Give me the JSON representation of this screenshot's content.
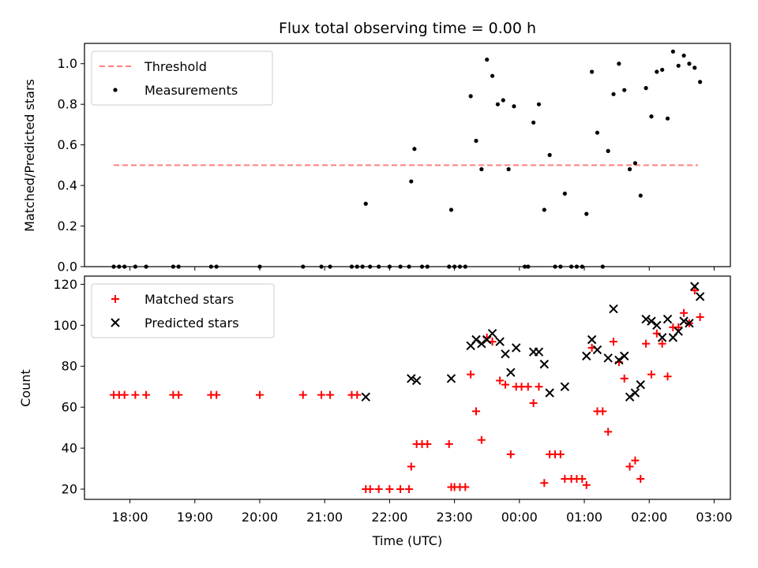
{
  "chart_data": [
    {
      "type": "scatter",
      "title": "Flux total observing time = 0.00 h",
      "xlabel": "",
      "ylabel": "Matched/Predicted stars",
      "xlim": [
        "17:18",
        "03:15"
      ],
      "ylim": [
        0,
        1.1
      ],
      "yticks": [
        "0.0",
        "0.2",
        "0.4",
        "0.6",
        "0.8",
        "1.0"
      ],
      "legend_position": "top-left",
      "threshold": {
        "name": "Threshold",
        "value": 0.5,
        "x_start": "17:45",
        "x_end": "02:45",
        "color": "#ff7f7f"
      },
      "series": [
        {
          "name": "Measurements",
          "color": "#000000",
          "points": [
            [
              "17:45",
              0
            ],
            [
              "17:50",
              0
            ],
            [
              "17:55",
              0
            ],
            [
              "18:05",
              0
            ],
            [
              "18:15",
              0
            ],
            [
              "18:40",
              0
            ],
            [
              "18:45",
              0
            ],
            [
              "19:15",
              0
            ],
            [
              "19:20",
              0
            ],
            [
              "20:00",
              0
            ],
            [
              "20:40",
              0
            ],
            [
              "20:57",
              0
            ],
            [
              "21:05",
              0
            ],
            [
              "21:25",
              0
            ],
            [
              "21:30",
              0
            ],
            [
              "21:35",
              0
            ],
            [
              "21:38",
              0.31
            ],
            [
              "21:42",
              0
            ],
            [
              "21:50",
              0
            ],
            [
              "22:00",
              0
            ],
            [
              "22:10",
              0
            ],
            [
              "22:18",
              0
            ],
            [
              "22:20",
              0.42
            ],
            [
              "22:23",
              0.58
            ],
            [
              "22:30",
              0
            ],
            [
              "22:35",
              0
            ],
            [
              "22:55",
              0
            ],
            [
              "22:57",
              0.28
            ],
            [
              "23:00",
              0
            ],
            [
              "23:05",
              0
            ],
            [
              "23:10",
              0
            ],
            [
              "23:15",
              0.84
            ],
            [
              "23:20",
              0.62
            ],
            [
              "23:25",
              0.48
            ],
            [
              "23:30",
              1.02
            ],
            [
              "23:35",
              0.94
            ],
            [
              "23:40",
              0.8
            ],
            [
              "23:45",
              0.82
            ],
            [
              "23:50",
              0.48
            ],
            [
              "23:55",
              0.79
            ],
            [
              "00:05",
              0
            ],
            [
              "00:08",
              0
            ],
            [
              "00:13",
              0.71
            ],
            [
              "00:18",
              0.8
            ],
            [
              "00:23",
              0.28
            ],
            [
              "00:28",
              0.55
            ],
            [
              "00:33",
              0
            ],
            [
              "00:38",
              0
            ],
            [
              "00:42",
              0.36
            ],
            [
              "00:48",
              0
            ],
            [
              "00:53",
              0
            ],
            [
              "00:58",
              0
            ],
            [
              "01:02",
              0.26
            ],
            [
              "01:07",
              0.96
            ],
            [
              "01:12",
              0.66
            ],
            [
              "01:17",
              0
            ],
            [
              "01:22",
              0.57
            ],
            [
              "01:27",
              0.85
            ],
            [
              "01:32",
              1.0
            ],
            [
              "01:37",
              0.87
            ],
            [
              "01:42",
              0.48
            ],
            [
              "01:47",
              0.51
            ],
            [
              "01:52",
              0.35
            ],
            [
              "01:57",
              0.88
            ],
            [
              "02:02",
              0.74
            ],
            [
              "02:07",
              0.96
            ],
            [
              "02:12",
              0.97
            ],
            [
              "02:17",
              0.73
            ],
            [
              "02:22",
              1.06
            ],
            [
              "02:27",
              0.99
            ],
            [
              "02:32",
              1.04
            ],
            [
              "02:37",
              1.0
            ],
            [
              "02:42",
              0.98
            ],
            [
              "02:47",
              0.91
            ]
          ]
        }
      ]
    },
    {
      "type": "scatter",
      "title": "",
      "xlabel": "Time (UTC)",
      "ylabel": "Count",
      "xlim": [
        "17:18",
        "03:15"
      ],
      "ylim": [
        15,
        124
      ],
      "yticks": [
        "20",
        "40",
        "60",
        "80",
        "100",
        "120"
      ],
      "xticks": [
        "18:00",
        "19:00",
        "20:00",
        "21:00",
        "22:00",
        "23:00",
        "00:00",
        "01:00",
        "02:00",
        "03:00"
      ],
      "legend_position": "top-left",
      "series": [
        {
          "name": "Matched stars",
          "color": "#ff0000",
          "marker": "plus",
          "points": [
            [
              "17:45",
              66
            ],
            [
              "17:50",
              66
            ],
            [
              "17:55",
              66
            ],
            [
              "18:05",
              66
            ],
            [
              "18:15",
              66
            ],
            [
              "18:40",
              66
            ],
            [
              "18:45",
              66
            ],
            [
              "19:15",
              66
            ],
            [
              "19:20",
              66
            ],
            [
              "20:00",
              66
            ],
            [
              "20:40",
              66
            ],
            [
              "20:57",
              66
            ],
            [
              "21:05",
              66
            ],
            [
              "21:25",
              66
            ],
            [
              "21:30",
              66
            ],
            [
              "21:38",
              20
            ],
            [
              "21:42",
              20
            ],
            [
              "21:50",
              20
            ],
            [
              "22:00",
              20
            ],
            [
              "22:10",
              20
            ],
            [
              "22:18",
              20
            ],
            [
              "22:20",
              31
            ],
            [
              "22:25",
              42
            ],
            [
              "22:30",
              42
            ],
            [
              "22:35",
              42
            ],
            [
              "22:55",
              42
            ],
            [
              "22:57",
              21
            ],
            [
              "23:00",
              21
            ],
            [
              "23:05",
              21
            ],
            [
              "23:10",
              21
            ],
            [
              "23:15",
              76
            ],
            [
              "23:20",
              58
            ],
            [
              "23:25",
              44
            ],
            [
              "23:30",
              94
            ],
            [
              "23:35",
              92
            ],
            [
              "23:42",
              73
            ],
            [
              "23:47",
              71
            ],
            [
              "23:52",
              37
            ],
            [
              "23:57",
              70
            ],
            [
              "00:02",
              70
            ],
            [
              "00:08",
              70
            ],
            [
              "00:13",
              62
            ],
            [
              "00:18",
              70
            ],
            [
              "00:23",
              23
            ],
            [
              "00:28",
              37
            ],
            [
              "00:33",
              37
            ],
            [
              "00:38",
              37
            ],
            [
              "00:42",
              25
            ],
            [
              "00:48",
              25
            ],
            [
              "00:53",
              25
            ],
            [
              "00:58",
              25
            ],
            [
              "01:02",
              22
            ],
            [
              "01:07",
              89
            ],
            [
              "01:12",
              58
            ],
            [
              "01:17",
              58
            ],
            [
              "01:22",
              48
            ],
            [
              "01:27",
              92
            ],
            [
              "01:32",
              82
            ],
            [
              "01:37",
              74
            ],
            [
              "01:42",
              31
            ],
            [
              "01:47",
              34
            ],
            [
              "01:52",
              25
            ],
            [
              "01:57",
              91
            ],
            [
              "02:02",
              76
            ],
            [
              "02:07",
              96
            ],
            [
              "02:12",
              91
            ],
            [
              "02:17",
              75
            ],
            [
              "02:22",
              99
            ],
            [
              "02:27",
              99
            ],
            [
              "02:32",
              106
            ],
            [
              "02:37",
              101
            ],
            [
              "02:42",
              117
            ],
            [
              "02:47",
              104
            ]
          ]
        },
        {
          "name": "Predicted stars",
          "color": "#000000",
          "marker": "cross",
          "points": [
            [
              "21:38",
              65
            ],
            [
              "22:20",
              74
            ],
            [
              "22:25",
              73
            ],
            [
              "22:57",
              74
            ],
            [
              "23:15",
              90
            ],
            [
              "23:20",
              93
            ],
            [
              "23:25",
              91
            ],
            [
              "23:30",
              93
            ],
            [
              "23:35",
              96
            ],
            [
              "23:42",
              92
            ],
            [
              "23:47",
              86
            ],
            [
              "23:52",
              77
            ],
            [
              "23:57",
              89
            ],
            [
              "00:13",
              87
            ],
            [
              "00:18",
              87
            ],
            [
              "00:23",
              81
            ],
            [
              "00:28",
              67
            ],
            [
              "00:42",
              70
            ],
            [
              "01:02",
              85
            ],
            [
              "01:07",
              93
            ],
            [
              "01:12",
              88
            ],
            [
              "01:22",
              84
            ],
            [
              "01:27",
              108
            ],
            [
              "01:32",
              83
            ],
            [
              "01:37",
              85
            ],
            [
              "01:42",
              65
            ],
            [
              "01:47",
              67
            ],
            [
              "01:52",
              71
            ],
            [
              "01:57",
              103
            ],
            [
              "02:02",
              102
            ],
            [
              "02:07",
              100
            ],
            [
              "02:12",
              94
            ],
            [
              "02:17",
              103
            ],
            [
              "02:22",
              94
            ],
            [
              "02:27",
              97
            ],
            [
              "02:32",
              102
            ],
            [
              "02:37",
              101
            ],
            [
              "02:42",
              119
            ],
            [
              "02:47",
              114
            ]
          ]
        }
      ]
    }
  ]
}
